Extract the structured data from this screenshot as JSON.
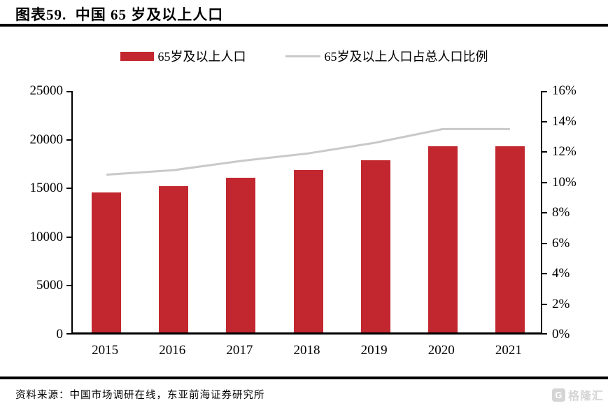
{
  "title": "图表59.  中国 65 岁及以上人口",
  "legend": {
    "bar_label": "65岁及以上人口",
    "line_label": "65岁及以上人口占总人口比例"
  },
  "source": "资料来源：中国市场调研在线，东亚前海证券研究所",
  "watermark": {
    "icon_letter": "G",
    "text": "格隆汇"
  },
  "colors": {
    "bar": "#C2272F",
    "line": "#C9C9C9",
    "axis": "#000000",
    "watermark": "#D5D5D5"
  },
  "chart_data": {
    "type": "bar",
    "title": "中国 65 岁及以上人口",
    "categories": [
      "2015",
      "2016",
      "2017",
      "2018",
      "2019",
      "2020",
      "2021"
    ],
    "series": [
      {
        "name": "65岁及以上人口",
        "type": "bar",
        "axis": "left",
        "values": [
          14400,
          15050,
          15850,
          16700,
          17650,
          19100,
          19100
        ]
      },
      {
        "name": "65岁及以上人口占总人口比例",
        "type": "line",
        "axis": "right",
        "values": [
          10.5,
          10.8,
          11.4,
          11.9,
          12.6,
          13.5,
          13.5
        ]
      }
    ],
    "left_axis": {
      "min": 0,
      "max": 25000,
      "step": 5000,
      "tick_labels": [
        "0",
        "5000",
        "10000",
        "15000",
        "20000",
        "25000"
      ]
    },
    "right_axis": {
      "min": 0,
      "max": 16,
      "step": 2,
      "tick_labels": [
        "0%",
        "2%",
        "4%",
        "6%",
        "8%",
        "10%",
        "12%",
        "14%",
        "16%"
      ]
    },
    "grid": false,
    "legend_position": "top"
  }
}
